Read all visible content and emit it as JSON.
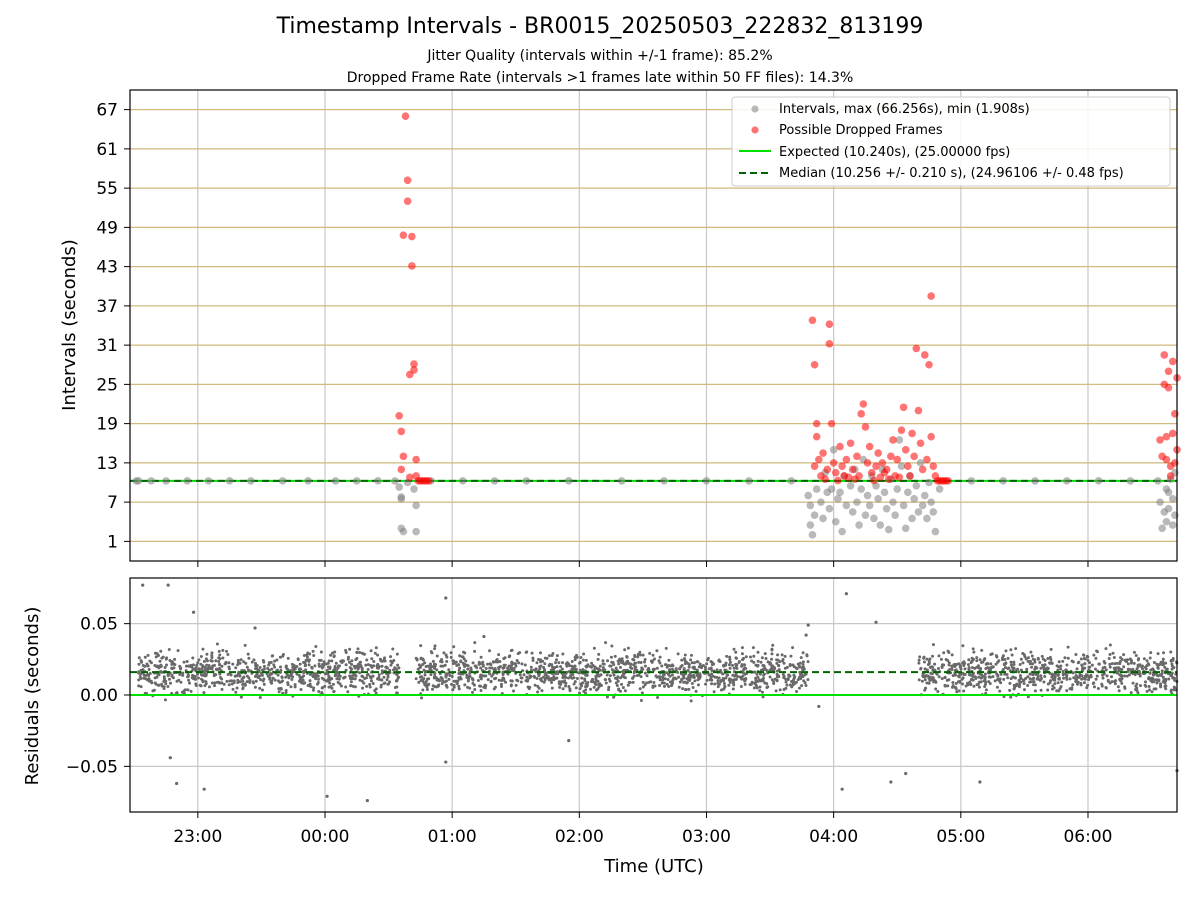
{
  "chart_data": [
    {
      "type": "scatter",
      "title": "Timestamp Intervals - BR0015_20250503_222832_813199",
      "subtitle_1": "Jitter Quality (intervals within +/-1 frame): 85.2%",
      "subtitle_2": "Dropped Frame Rate (intervals >1 frames late within 50 FF files): 14.3%",
      "ylabel": "Intervals (seconds)",
      "ylim": [
        -2,
        70
      ],
      "yticks": [
        "67",
        "61",
        "55",
        "49",
        "43",
        "37",
        "31",
        "25",
        "19",
        "13",
        "7",
        "1"
      ],
      "x_range_utc": [
        "22:28",
        "06:42"
      ],
      "grid": "vertical + horizontal (tan)",
      "legend_position": "top-right",
      "legend": [
        "Intervals, max (66.256s), min (1.908s)",
        "Possible Dropped Frames",
        "Expected (10.240s), (25.00000 fps)",
        "Median (10.256 +/- 0.210 s), (24.96106 +/- 0.48 fps)"
      ],
      "series": [
        {
          "name": "Intervals, max (66.256s), min (1.908s)",
          "color": "#808080",
          "points": [
            [
              "22:31",
              10.24
            ],
            [
              "22:32",
              10.26
            ],
            [
              "22:38",
              10.25
            ],
            [
              "22:45",
              10.24
            ],
            [
              "22:55",
              10.26
            ],
            [
              "23:05",
              10.25
            ],
            [
              "23:15",
              10.26
            ],
            [
              "23:25",
              10.24
            ],
            [
              "23:40",
              10.25
            ],
            [
              "23:52",
              10.26
            ],
            [
              "00:05",
              10.24
            ],
            [
              "00:15",
              10.25
            ],
            [
              "00:25",
              10.26
            ],
            [
              "00:33",
              10.24
            ],
            [
              "00:35",
              9.3
            ],
            [
              "00:36",
              7.8
            ],
            [
              "00:36",
              7.5
            ],
            [
              "00:36",
              3.0
            ],
            [
              "00:37",
              2.5
            ],
            [
              "00:39",
              10.0
            ],
            [
              "00:42",
              9.0
            ],
            [
              "00:43",
              6.5
            ],
            [
              "00:43",
              2.5
            ],
            [
              "00:50",
              10.25
            ],
            [
              "01:05",
              10.26
            ],
            [
              "01:20",
              10.24
            ],
            [
              "01:35",
              10.25
            ],
            [
              "01:55",
              10.26
            ],
            [
              "02:20",
              10.24
            ],
            [
              "02:40",
              10.25
            ],
            [
              "03:00",
              10.26
            ],
            [
              "03:20",
              10.24
            ],
            [
              "03:40",
              10.25
            ],
            [
              "03:48",
              8.0
            ],
            [
              "03:49",
              6.5
            ],
            [
              "03:49",
              3.5
            ],
            [
              "03:50",
              2.0
            ],
            [
              "03:51",
              5.0
            ],
            [
              "03:52",
              9.0
            ],
            [
              "03:54",
              7.0
            ],
            [
              "03:55",
              4.5
            ],
            [
              "03:56",
              11.5
            ],
            [
              "03:57",
              8.5
            ],
            [
              "03:58",
              6.0
            ],
            [
              "03:59",
              9.0
            ],
            [
              "04:00",
              15.0
            ],
            [
              "04:01",
              4.0
            ],
            [
              "04:02",
              7.5
            ],
            [
              "04:03",
              8.5
            ],
            [
              "04:04",
              2.5
            ],
            [
              "04:05",
              11.0
            ],
            [
              "04:06",
              6.5
            ],
            [
              "04:08",
              9.5
            ],
            [
              "04:09",
              5.5
            ],
            [
              "04:10",
              12.0
            ],
            [
              "04:11",
              7.0
            ],
            [
              "04:12",
              3.5
            ],
            [
              "04:13",
              9.0
            ],
            [
              "04:14",
              13.5
            ],
            [
              "04:15",
              5.0
            ],
            [
              "04:16",
              8.0
            ],
            [
              "04:17",
              6.5
            ],
            [
              "04:18",
              11.0
            ],
            [
              "04:19",
              4.5
            ],
            [
              "04:20",
              9.5
            ],
            [
              "04:21",
              7.5
            ],
            [
              "04:22",
              3.5
            ],
            [
              "04:23",
              12.0
            ],
            [
              "04:24",
              8.5
            ],
            [
              "04:25",
              6.0
            ],
            [
              "04:26",
              2.8
            ],
            [
              "04:27",
              10.5
            ],
            [
              "04:28",
              7.0
            ],
            [
              "04:29",
              5.0
            ],
            [
              "04:30",
              9.0
            ],
            [
              "04:31",
              16.5
            ],
            [
              "04:32",
              12.5
            ],
            [
              "04:33",
              6.5
            ],
            [
              "04:34",
              3.0
            ],
            [
              "04:35",
              8.5
            ],
            [
              "04:36",
              11.0
            ],
            [
              "04:37",
              4.5
            ],
            [
              "04:38",
              7.5
            ],
            [
              "04:39",
              9.5
            ],
            [
              "04:40",
              5.5
            ],
            [
              "04:41",
              13.0
            ],
            [
              "04:42",
              6.5
            ],
            [
              "04:43",
              8.0
            ],
            [
              "04:44",
              4.5
            ],
            [
              "04:45",
              10.0
            ],
            [
              "04:46",
              7.0
            ],
            [
              "04:47",
              5.5
            ],
            [
              "04:48",
              2.5
            ],
            [
              "04:50",
              9.0
            ],
            [
              "05:05",
              10.25
            ],
            [
              "05:20",
              10.26
            ],
            [
              "05:35",
              10.24
            ],
            [
              "05:50",
              10.25
            ],
            [
              "06:05",
              10.26
            ],
            [
              "06:20",
              10.24
            ],
            [
              "06:33",
              10.25
            ],
            [
              "06:34",
              7.0
            ],
            [
              "06:35",
              3.0
            ],
            [
              "06:36",
              5.5
            ],
            [
              "06:37",
              9.0
            ],
            [
              "06:37",
              4.0
            ],
            [
              "06:38",
              8.5
            ],
            [
              "06:38",
              6.0
            ],
            [
              "06:39",
              10.5
            ],
            [
              "06:40",
              3.5
            ],
            [
              "06:40",
              7.5
            ],
            [
              "06:41",
              5.0
            ],
            [
              "06:41",
              11.5
            ]
          ]
        },
        {
          "name": "Possible Dropped Frames",
          "color": "#ff0000",
          "points": [
            [
              "00:35",
              20.2
            ],
            [
              "00:36",
              12.0
            ],
            [
              "00:36",
              17.8
            ],
            [
              "00:37",
              14.0
            ],
            [
              "00:37",
              47.8
            ],
            [
              "00:38",
              66.0
            ],
            [
              "00:39",
              53.0
            ],
            [
              "00:39",
              56.2
            ],
            [
              "00:40",
              10.8
            ],
            [
              "00:40",
              26.5
            ],
            [
              "00:41",
              43.1
            ],
            [
              "00:41",
              47.6
            ],
            [
              "00:42",
              27.2
            ],
            [
              "00:42",
              28.1
            ],
            [
              "00:43",
              13.5
            ],
            [
              "00:43",
              11.0
            ],
            [
              "00:44",
              10.25
            ],
            [
              "00:45",
              10.25
            ],
            [
              "00:46",
              10.25
            ],
            [
              "00:47",
              10.25
            ],
            [
              "00:48",
              10.25
            ],
            [
              "00:49",
              10.25
            ],
            [
              "03:50",
              34.8
            ],
            [
              "03:51",
              28.0
            ],
            [
              "03:51",
              12.5
            ],
            [
              "03:52",
              19.0
            ],
            [
              "03:52",
              17.0
            ],
            [
              "03:53",
              13.5
            ],
            [
              "03:54",
              11.0
            ],
            [
              "03:55",
              14.5
            ],
            [
              "03:56",
              10.5
            ],
            [
              "03:57",
              12.0
            ],
            [
              "03:58",
              34.2
            ],
            [
              "03:58",
              31.2
            ],
            [
              "03:59",
              19.0
            ],
            [
              "04:00",
              13.0
            ],
            [
              "04:01",
              11.5
            ],
            [
              "04:02",
              10.3
            ],
            [
              "04:03",
              15.5
            ],
            [
              "04:04",
              12.5
            ],
            [
              "04:05",
              11.0
            ],
            [
              "04:06",
              13.5
            ],
            [
              "04:07",
              10.8
            ],
            [
              "04:08",
              16.0
            ],
            [
              "04:09",
              12.0
            ],
            [
              "04:10",
              10.5
            ],
            [
              "04:11",
              14.0
            ],
            [
              "04:12",
              11.0
            ],
            [
              "04:13",
              20.5
            ],
            [
              "04:14",
              22.0
            ],
            [
              "04:15",
              18.5
            ],
            [
              "04:16",
              13.0
            ],
            [
              "04:17",
              15.5
            ],
            [
              "04:18",
              11.5
            ],
            [
              "04:19",
              10.3
            ],
            [
              "04:20",
              12.5
            ],
            [
              "04:21",
              14.5
            ],
            [
              "04:22",
              10.8
            ],
            [
              "04:23",
              13.0
            ],
            [
              "04:24",
              11.5
            ],
            [
              "04:25",
              12.0
            ],
            [
              "04:26",
              10.5
            ],
            [
              "04:27",
              14.0
            ],
            [
              "04:28",
              16.5
            ],
            [
              "04:29",
              11.0
            ],
            [
              "04:30",
              13.5
            ],
            [
              "04:31",
              10.8
            ],
            [
              "04:32",
              18.0
            ],
            [
              "04:33",
              21.5
            ],
            [
              "04:34",
              15.0
            ],
            [
              "04:35",
              12.5
            ],
            [
              "04:36",
              11.0
            ],
            [
              "04:37",
              17.5
            ],
            [
              "04:38",
              14.0
            ],
            [
              "04:39",
              30.5
            ],
            [
              "04:40",
              21.0
            ],
            [
              "04:41",
              16.0
            ],
            [
              "04:42",
              12.0
            ],
            [
              "04:43",
              29.5
            ],
            [
              "04:44",
              13.5
            ],
            [
              "04:45",
              28.0
            ],
            [
              "04:46",
              17.0
            ],
            [
              "04:46",
              38.5
            ],
            [
              "04:47",
              12.5
            ],
            [
              "04:48",
              11.0
            ],
            [
              "04:49",
              10.25
            ],
            [
              "04:50",
              10.25
            ],
            [
              "04:51",
              10.25
            ],
            [
              "04:52",
              10.25
            ],
            [
              "04:53",
              10.25
            ],
            [
              "04:54",
              10.25
            ],
            [
              "06:34",
              16.5
            ],
            [
              "06:35",
              14.0
            ],
            [
              "06:36",
              29.5
            ],
            [
              "06:36",
              25.0
            ],
            [
              "06:37",
              17.0
            ],
            [
              "06:37",
              13.5
            ],
            [
              "06:38",
              27.0
            ],
            [
              "06:38",
              24.5
            ],
            [
              "06:39",
              12.5
            ],
            [
              "06:39",
              11.0
            ],
            [
              "06:40",
              28.5
            ],
            [
              "06:40",
              17.5
            ],
            [
              "06:41",
              20.5
            ],
            [
              "06:41",
              13.0
            ],
            [
              "06:42",
              26.0
            ],
            [
              "06:42",
              15.0
            ]
          ]
        }
      ],
      "reference_lines": [
        {
          "name": "Expected (10.240s), (25.00000 fps)",
          "y": 10.24,
          "color": "#00e000",
          "style": "solid"
        },
        {
          "name": "Median (10.256 +/- 0.210 s), (24.96106 +/- 0.48 fps)",
          "y": 10.256,
          "color": "#006400",
          "style": "dashed"
        }
      ]
    },
    {
      "type": "scatter",
      "ylabel": "Residuals (seconds)",
      "xlabel": "Time (UTC)",
      "ylim": [
        -0.082,
        0.082
      ],
      "yticks": [
        "0.05",
        "0.00",
        "−0.05"
      ],
      "xticks": [
        "23:00",
        "00:00",
        "01:00",
        "02:00",
        "03:00",
        "04:00",
        "05:00",
        "06:00"
      ],
      "x_range_utc": [
        "22:28",
        "06:42"
      ],
      "grid": "vertical + horizontal (grey)",
      "color": "#696969",
      "zero_line": {
        "y": 0.0,
        "color": "#00e000"
      },
      "median_line": {
        "y": 0.016,
        "color": "#006400",
        "style": "dashed"
      },
      "bulk_band": {
        "segments": [
          [
            "22:32",
            "00:35"
          ],
          [
            "00:43",
            "03:48"
          ],
          [
            "04:40",
            "06:42"
          ]
        ],
        "center": 0.016,
        "spread": 0.013
      },
      "outliers": [
        [
          "22:34",
          0.077
        ],
        [
          "22:46",
          0.077
        ],
        [
          "22:47",
          -0.044
        ],
        [
          "22:50",
          -0.062
        ],
        [
          "22:58",
          0.058
        ],
        [
          "23:03",
          -0.066
        ],
        [
          "23:27",
          0.047
        ],
        [
          "00:01",
          -0.071
        ],
        [
          "00:20",
          -0.074
        ],
        [
          "00:57",
          0.068
        ],
        [
          "00:57",
          -0.047
        ],
        [
          "01:15",
          0.041
        ],
        [
          "01:55",
          -0.032
        ],
        [
          "03:47",
          0.042
        ],
        [
          "03:48",
          0.049
        ],
        [
          "03:53",
          -0.008
        ],
        [
          "04:04",
          -0.066
        ],
        [
          "04:06",
          0.071
        ],
        [
          "04:20",
          0.051
        ],
        [
          "04:27",
          -0.061
        ],
        [
          "04:34",
          -0.055
        ],
        [
          "05:09",
          -0.061
        ],
        [
          "06:42",
          -0.053
        ]
      ]
    }
  ]
}
